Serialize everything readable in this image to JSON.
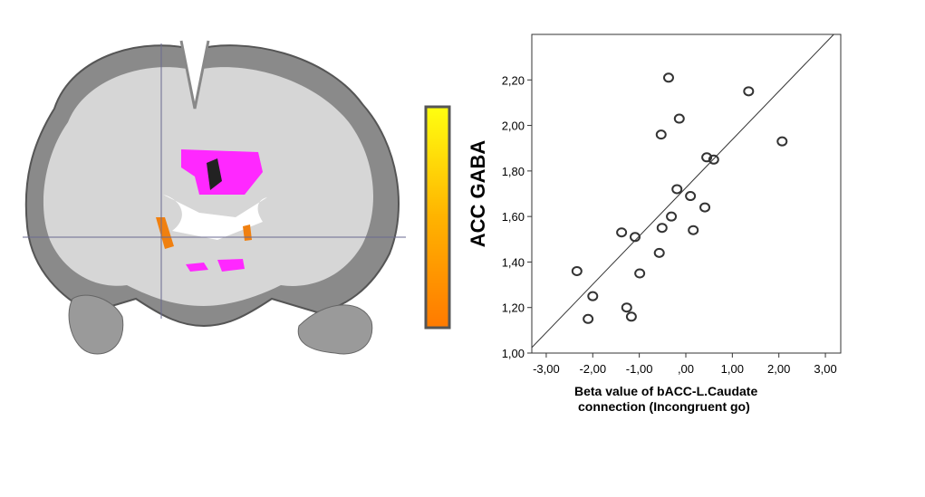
{
  "chart_data": {
    "type": "scatter",
    "x_label": [
      "Beta value of bACC-L.Caudate",
      "connection (Incongruent go)"
    ],
    "y_label": "ACC GABA",
    "xlim": [
      -3.31,
      3.33
    ],
    "ylim": [
      1.0,
      2.4
    ],
    "xticks": [
      {
        "value": -3,
        "label": "-3,00"
      },
      {
        "value": -2,
        "label": "-2,00"
      },
      {
        "value": -1,
        "label": "-1,00"
      },
      {
        "value": 0,
        "label": ",00"
      },
      {
        "value": 1,
        "label": "1,00"
      },
      {
        "value": 2,
        "label": "2,00"
      },
      {
        "value": 3,
        "label": "3,00"
      }
    ],
    "yticks": [
      {
        "value": 1.0,
        "label": "1,00"
      },
      {
        "value": 1.2,
        "label": "1,20"
      },
      {
        "value": 1.4,
        "label": "1,40"
      },
      {
        "value": 1.6,
        "label": "1,60"
      },
      {
        "value": 1.8,
        "label": "1,80"
      },
      {
        "value": 2.0,
        "label": "2,00"
      },
      {
        "value": 2.2,
        "label": "2,20"
      }
    ],
    "x": [
      -0.37,
      1.35,
      -0.14,
      -0.53,
      2.07,
      0.45,
      0.6,
      -0.19,
      0.1,
      -0.31,
      0.41,
      -0.51,
      0.16,
      -1.38,
      -1.09,
      -0.57,
      -0.99,
      -2.34,
      -2.0,
      -1.27,
      -1.17,
      -2.1
    ],
    "values": [
      2.21,
      2.15,
      2.03,
      1.96,
      1.93,
      1.86,
      1.85,
      1.72,
      1.69,
      1.6,
      1.64,
      1.55,
      1.54,
      1.53,
      1.51,
      1.44,
      1.35,
      1.36,
      1.25,
      1.2,
      1.16,
      1.15
    ],
    "color": "#333333",
    "fit_line": {
      "slope": 0.212,
      "intercept": 1.726
    }
  }
}
